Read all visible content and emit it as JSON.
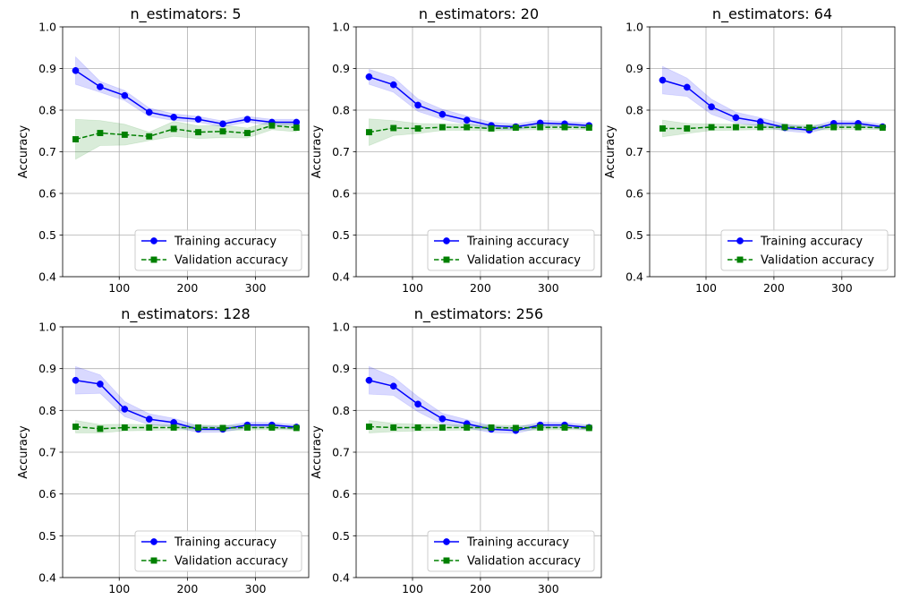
{
  "chart_data": [
    {
      "type": "line",
      "title": "n_estimators: 5",
      "xlabel": "",
      "ylabel": "Accuracy",
      "xlim": [
        17,
        378
      ],
      "ylim": [
        0.4,
        1.0
      ],
      "xticks": [
        100,
        200,
        300
      ],
      "yticks": [
        0.4,
        0.5,
        0.6,
        0.7,
        0.8,
        0.9,
        1.0
      ],
      "grid": true,
      "legend_position": "lower-right",
      "x": [
        36,
        72,
        108,
        144,
        180,
        216,
        252,
        288,
        324,
        360
      ],
      "series": [
        {
          "name": "Training accuracy",
          "color": "#0000ff",
          "marker": "circle",
          "linestyle": "solid",
          "values": [
            0.895,
            0.856,
            0.835,
            0.795,
            0.783,
            0.778,
            0.767,
            0.778,
            0.771,
            0.771
          ],
          "band": [
            0.033,
            0.013,
            0.012,
            0.01,
            0.008,
            0.007,
            0.007,
            0.007,
            0.007,
            0.007
          ]
        },
        {
          "name": "Validation accuracy",
          "color": "#008000",
          "marker": "square",
          "linestyle": "dashed",
          "values": [
            0.73,
            0.745,
            0.741,
            0.737,
            0.755,
            0.747,
            0.749,
            0.745,
            0.763,
            0.758
          ],
          "band": [
            0.048,
            0.03,
            0.025,
            0.01,
            0.018,
            0.015,
            0.015,
            0.012,
            0.01,
            0.01
          ]
        }
      ]
    },
    {
      "type": "line",
      "title": "n_estimators: 20",
      "xlabel": "",
      "ylabel": "Accuracy",
      "xlim": [
        17,
        378
      ],
      "ylim": [
        0.4,
        1.0
      ],
      "xticks": [
        100,
        200,
        300
      ],
      "yticks": [
        0.4,
        0.5,
        0.6,
        0.7,
        0.8,
        0.9,
        1.0
      ],
      "grid": true,
      "legend_position": "lower-right",
      "x": [
        36,
        72,
        108,
        144,
        180,
        216,
        252,
        288,
        324,
        360
      ],
      "series": [
        {
          "name": "Training accuracy",
          "color": "#0000ff",
          "marker": "circle",
          "linestyle": "solid",
          "values": [
            0.88,
            0.861,
            0.812,
            0.79,
            0.776,
            0.763,
            0.76,
            0.769,
            0.767,
            0.763
          ],
          "band": [
            0.018,
            0.018,
            0.015,
            0.012,
            0.01,
            0.008,
            0.007,
            0.007,
            0.006,
            0.006
          ]
        },
        {
          "name": "Validation accuracy",
          "color": "#008000",
          "marker": "square",
          "linestyle": "dashed",
          "values": [
            0.747,
            0.757,
            0.756,
            0.759,
            0.759,
            0.756,
            0.758,
            0.759,
            0.759,
            0.758
          ],
          "band": [
            0.032,
            0.018,
            0.012,
            0.008,
            0.007,
            0.006,
            0.006,
            0.006,
            0.005,
            0.005
          ]
        }
      ]
    },
    {
      "type": "line",
      "title": "n_estimators: 64",
      "xlabel": "",
      "ylabel": "Accuracy",
      "xlim": [
        17,
        378
      ],
      "ylim": [
        0.4,
        1.0
      ],
      "xticks": [
        100,
        200,
        300
      ],
      "yticks": [
        0.4,
        0.5,
        0.6,
        0.7,
        0.8,
        0.9,
        1.0
      ],
      "grid": true,
      "legend_position": "lower-right",
      "x": [
        36,
        72,
        108,
        144,
        180,
        216,
        252,
        288,
        324,
        360
      ],
      "series": [
        {
          "name": "Training accuracy",
          "color": "#0000ff",
          "marker": "circle",
          "linestyle": "solid",
          "values": [
            0.872,
            0.855,
            0.808,
            0.782,
            0.772,
            0.758,
            0.752,
            0.768,
            0.768,
            0.76
          ],
          "band": [
            0.033,
            0.022,
            0.018,
            0.013,
            0.01,
            0.008,
            0.007,
            0.007,
            0.006,
            0.006
          ]
        },
        {
          "name": "Validation accuracy",
          "color": "#008000",
          "marker": "square",
          "linestyle": "dashed",
          "values": [
            0.756,
            0.756,
            0.759,
            0.759,
            0.759,
            0.759,
            0.758,
            0.759,
            0.759,
            0.758
          ],
          "band": [
            0.02,
            0.012,
            0.008,
            0.007,
            0.006,
            0.006,
            0.006,
            0.006,
            0.005,
            0.005
          ]
        }
      ]
    },
    {
      "type": "line",
      "title": "n_estimators: 128",
      "xlabel": "",
      "ylabel": "Accuracy",
      "xlim": [
        17,
        378
      ],
      "ylim": [
        0.4,
        1.0
      ],
      "xticks": [
        100,
        200,
        300
      ],
      "yticks": [
        0.4,
        0.5,
        0.6,
        0.7,
        0.8,
        0.9,
        1.0
      ],
      "grid": true,
      "legend_position": "lower-right",
      "x": [
        36,
        72,
        108,
        144,
        180,
        216,
        252,
        288,
        324,
        360
      ],
      "series": [
        {
          "name": "Training accuracy",
          "color": "#0000ff",
          "marker": "circle",
          "linestyle": "solid",
          "values": [
            0.872,
            0.863,
            0.803,
            0.779,
            0.771,
            0.755,
            0.755,
            0.765,
            0.765,
            0.76
          ],
          "band": [
            0.033,
            0.022,
            0.018,
            0.013,
            0.01,
            0.008,
            0.007,
            0.007,
            0.006,
            0.006
          ]
        },
        {
          "name": "Validation accuracy",
          "color": "#008000",
          "marker": "square",
          "linestyle": "dashed",
          "values": [
            0.761,
            0.756,
            0.759,
            0.759,
            0.759,
            0.759,
            0.758,
            0.759,
            0.759,
            0.758
          ],
          "band": [
            0.015,
            0.01,
            0.008,
            0.007,
            0.006,
            0.006,
            0.006,
            0.006,
            0.005,
            0.005
          ]
        }
      ]
    },
    {
      "type": "line",
      "title": "n_estimators: 256",
      "xlabel": "",
      "ylabel": "Accuracy",
      "xlim": [
        17,
        378
      ],
      "ylim": [
        0.4,
        1.0
      ],
      "xticks": [
        100,
        200,
        300
      ],
      "yticks": [
        0.4,
        0.5,
        0.6,
        0.7,
        0.8,
        0.9,
        1.0
      ],
      "grid": true,
      "legend_position": "lower-right",
      "x": [
        36,
        72,
        108,
        144,
        180,
        216,
        252,
        288,
        324,
        360
      ],
      "series": [
        {
          "name": "Training accuracy",
          "color": "#0000ff",
          "marker": "circle",
          "linestyle": "solid",
          "values": [
            0.872,
            0.858,
            0.815,
            0.78,
            0.768,
            0.755,
            0.752,
            0.765,
            0.765,
            0.759
          ],
          "band": [
            0.033,
            0.022,
            0.018,
            0.013,
            0.01,
            0.008,
            0.007,
            0.007,
            0.006,
            0.006
          ]
        },
        {
          "name": "Validation accuracy",
          "color": "#008000",
          "marker": "square",
          "linestyle": "dashed",
          "values": [
            0.761,
            0.759,
            0.759,
            0.759,
            0.759,
            0.759,
            0.758,
            0.759,
            0.759,
            0.758
          ],
          "band": [
            0.015,
            0.01,
            0.008,
            0.007,
            0.006,
            0.006,
            0.006,
            0.006,
            0.005,
            0.005
          ]
        }
      ]
    }
  ]
}
